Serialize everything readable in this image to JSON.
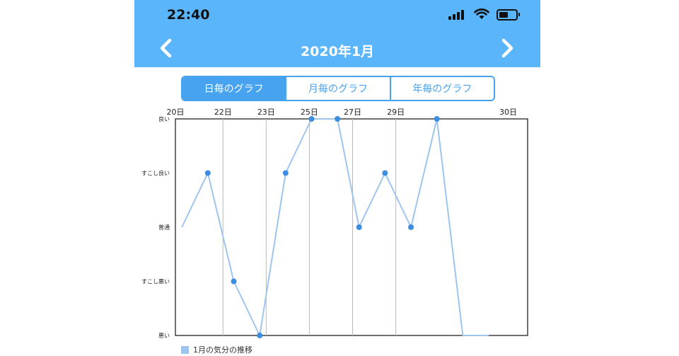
{
  "status_bar": {
    "time": "22:40"
  },
  "header": {
    "title": "2020年1月",
    "prev_icon": "chevron-left-icon",
    "next_icon": "chevron-right-icon"
  },
  "tabs": [
    {
      "label": "日毎のグラフ",
      "active": true
    },
    {
      "label": "月毎のグラフ",
      "active": false
    },
    {
      "label": "年毎のグラフ",
      "active": false
    }
  ],
  "colors": {
    "header": "#5bb5fb",
    "accent": "#47a3f0",
    "line": "#9ec5ee",
    "point": "#3d8ee0"
  },
  "chart_data": {
    "type": "line",
    "x_ticks": [
      "20日",
      "22日",
      "23日",
      "25日",
      "27日",
      "29日",
      "30日"
    ],
    "y_levels": [
      "悪い",
      "すこし悪い",
      "普通",
      "すこし良い",
      "良い"
    ],
    "series": [
      {
        "name": "1月の気分の推移",
        "x": [
          19.8,
          20.4,
          21.0,
          21.6,
          22.2,
          22.8,
          23.4,
          23.9,
          24.5,
          25.1,
          25.7,
          26.3,
          26.9
        ],
        "values": [
          2,
          3,
          1,
          0,
          3,
          4,
          4,
          2,
          3,
          2,
          4,
          0,
          0
        ],
        "point_shown": [
          false,
          true,
          true,
          true,
          true,
          true,
          true,
          true,
          true,
          true,
          true,
          false,
          false
        ]
      }
    ],
    "legend": "bottom-left"
  }
}
